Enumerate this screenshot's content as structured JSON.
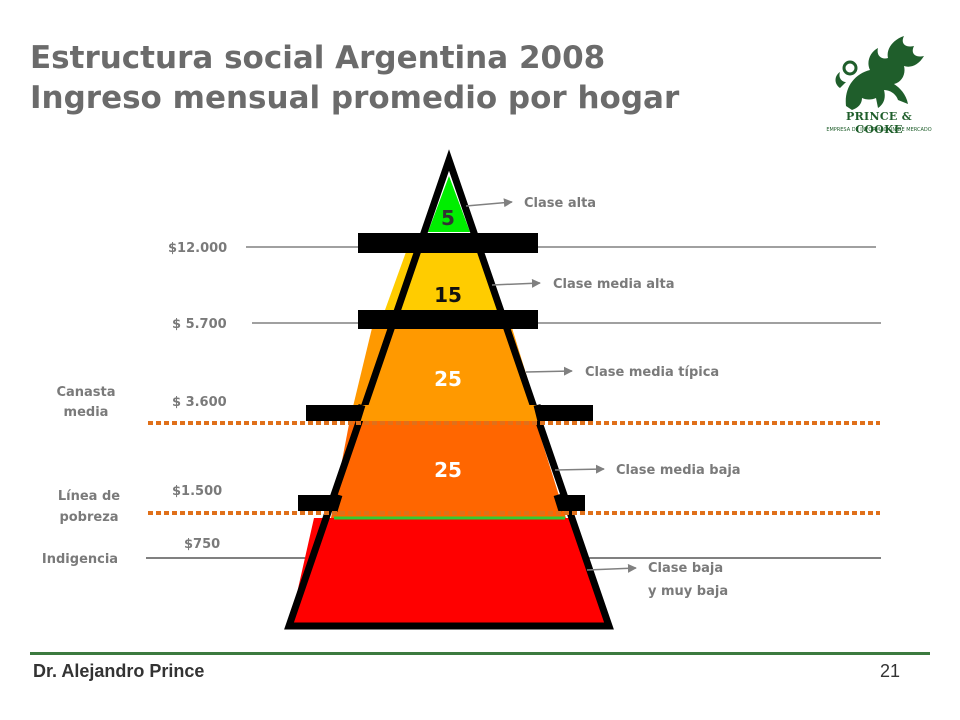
{
  "title": {
    "line1": "Estructura social Argentina 2008",
    "line2": "Ingreso mensual promedio por hogar"
  },
  "logo": {
    "name": "PRINCE & COOKE",
    "tagline": "EMPRESA DE INFORMACIÓN DE MERCADO",
    "icon": "dragon-icon",
    "color": "#1f5e2b"
  },
  "pyramid": {
    "layers": [
      {
        "value": "5",
        "label": "Clase alta",
        "color": "#00ee00"
      },
      {
        "value": "15",
        "label": "Clase media alta",
        "color": "#ffcc00"
      },
      {
        "value": "25",
        "label": "Clase media típica",
        "color": "#ff9900"
      },
      {
        "value": "25",
        "label": "Clase media baja",
        "color": "#ff6600"
      },
      {
        "value": "",
        "label_line1": "Clase baja",
        "label_line2": "y muy baja",
        "color": "#ff0000"
      }
    ]
  },
  "thresholds": {
    "t12000": "$12.000",
    "t5700": "$ 5.700",
    "t3600": "$ 3.600",
    "t1500": "$1.500",
    "t750": "$750"
  },
  "side_labels": {
    "canasta_line1": "Canasta",
    "canasta_line2": "media",
    "pobreza_line1": "Línea de",
    "pobreza_line2": "pobreza",
    "indigencia": "Indigencia"
  },
  "colors": {
    "text_gray": "#6b6b6b",
    "dotted_line": "#e0701a",
    "footer_green": "#3c7a3f"
  },
  "footer": {
    "author": "Dr. Alejandro Prince",
    "page": "21"
  }
}
